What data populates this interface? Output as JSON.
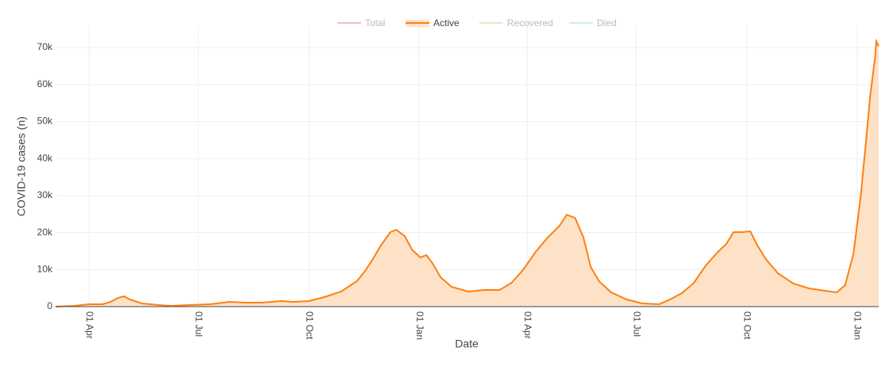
{
  "chart_data": {
    "type": "area",
    "x_label": "Date",
    "y_label": "COVID-19 cases (n)",
    "x": [
      -28,
      -12,
      0,
      11,
      18,
      24,
      29,
      34,
      44,
      58,
      68,
      84,
      101,
      117,
      130,
      144,
      160,
      170,
      183,
      196,
      210,
      223,
      230,
      236,
      243,
      251,
      256,
      263,
      269,
      276,
      281,
      286,
      293,
      302,
      316,
      329,
      342,
      352,
      362,
      372,
      382,
      392,
      398,
      405,
      412,
      418,
      425,
      435,
      448,
      461,
      475,
      484,
      494,
      504,
      514,
      524,
      531,
      537,
      544,
      551,
      557,
      564,
      574,
      587,
      600,
      613,
      623,
      630,
      637,
      643,
      647,
      651,
      655,
      656,
      658
    ],
    "series": [
      {
        "name": "Total",
        "color": "#e377c2",
        "hidden": true
      },
      {
        "name": "Active",
        "color": "#ff7f0e",
        "fill": "#fde2c8",
        "hidden": false,
        "values": [
          0,
          214,
          640,
          640,
          1280,
          2350,
          2780,
          1930,
          860,
          430,
          214,
          430,
          640,
          1280,
          1070,
          1070,
          1500,
          1280,
          1500,
          2570,
          4070,
          6850,
          9630,
          12630,
          16480,
          20120,
          20760,
          19050,
          15410,
          13270,
          13910,
          11770,
          7920,
          5350,
          4070,
          4490,
          4490,
          6420,
          10060,
          14770,
          18620,
          21830,
          24820,
          23970,
          18620,
          10700,
          6850,
          3850,
          1930,
          860,
          640,
          1930,
          3640,
          6420,
          11130,
          14770,
          16910,
          20120,
          20120,
          20330,
          16480,
          12840,
          8990,
          6210,
          4920,
          4280,
          3850,
          5780,
          14340,
          29750,
          43230,
          57140,
          67410,
          71690,
          70400
        ]
      },
      {
        "name": "Recovered",
        "color": "#bcdc8a",
        "hidden": true
      },
      {
        "name": "Died",
        "color": "#9edae5",
        "hidden": true
      }
    ],
    "xlim": [
      -28,
      658
    ],
    "xticks": [
      {
        "value": 0,
        "label": "01 Apr"
      },
      {
        "value": 91,
        "label": "01 Jul"
      },
      {
        "value": 183,
        "label": "01 Oct"
      },
      {
        "value": 275,
        "label": "01 Jan"
      },
      {
        "value": 365,
        "label": "01 Apr"
      },
      {
        "value": 456,
        "label": "01 Jul"
      },
      {
        "value": 548,
        "label": "01 Oct"
      },
      {
        "value": 640,
        "label": "01 Jan"
      }
    ],
    "ylim": [
      0,
      76000
    ],
    "yticks": [
      0,
      {
        "value": 10000,
        "label": "10k"
      },
      {
        "value": 20000,
        "label": "20k"
      },
      {
        "value": 30000,
        "label": "30k"
      },
      {
        "value": 40000,
        "label": "40k"
      },
      {
        "value": 50000,
        "label": "50k"
      },
      {
        "value": 60000,
        "label": "60k"
      },
      {
        "value": 70000,
        "label": "70k"
      }
    ],
    "grid": true,
    "legend": "top"
  }
}
